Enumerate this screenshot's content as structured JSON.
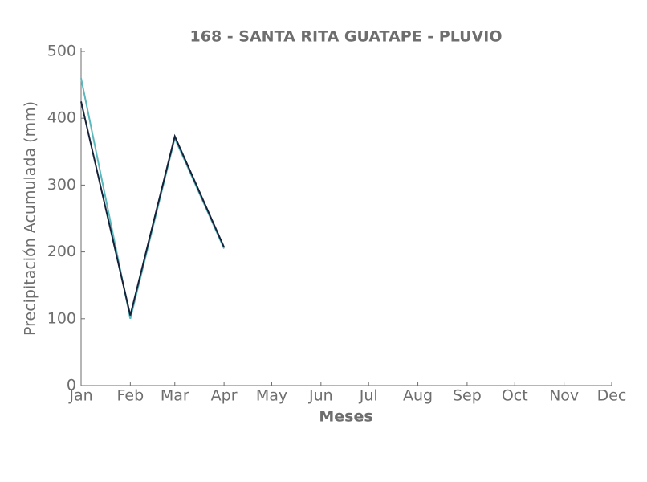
{
  "chart_data": {
    "type": "line",
    "title": "168 - SANTA RITA GUATAPE - PLUVIO",
    "x_label": "Meses",
    "y_label": "Precipitación Acumulada (mm)",
    "categories": [
      "Jan",
      "Feb",
      "Mar",
      "Apr",
      "May",
      "Jun",
      "Jul",
      "Aug",
      "Sep",
      "Oct",
      "Nov",
      "Dec"
    ],
    "series": [
      {
        "color": "#5bb8bd",
        "values": [
          460,
          100,
          370,
          205,
          null,
          null,
          null,
          null,
          null,
          null,
          null,
          null
        ]
      },
      {
        "color": "#16223a",
        "values": [
          425,
          105,
          373,
          207,
          null,
          null,
          null,
          null,
          null,
          null,
          null,
          null
        ]
      }
    ],
    "ylim": [
      0,
      500
    ],
    "yticks": [
      0,
      100,
      200,
      300,
      400,
      500
    ],
    "grid": false
  }
}
